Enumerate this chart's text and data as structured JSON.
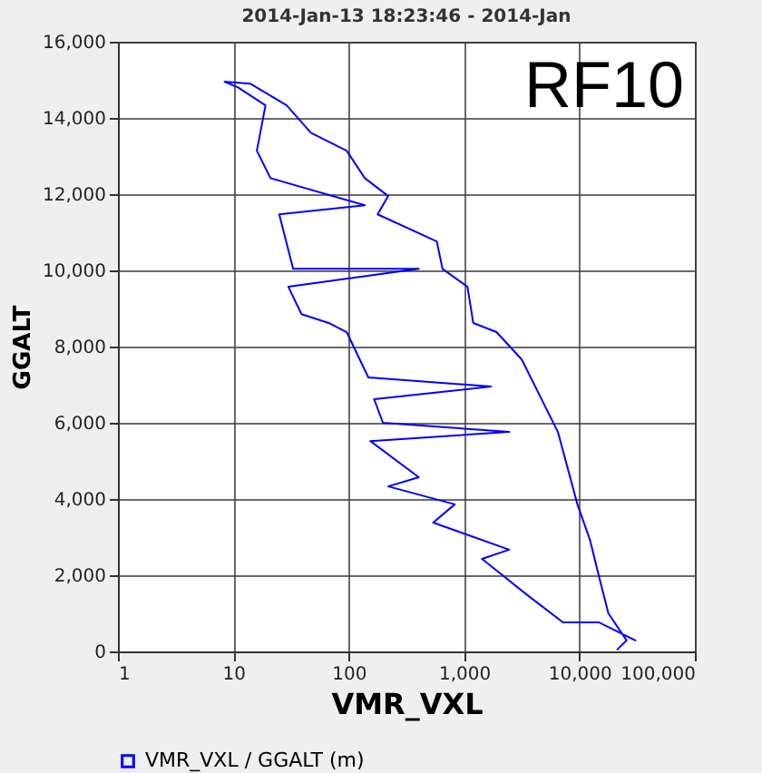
{
  "chart_data": {
    "type": "line",
    "title": "2014-Jan-13 18:23:46 - 2014-Jan",
    "xlabel": "VMR_VXL",
    "ylabel": "GGALT",
    "annotations": [
      "RF10"
    ],
    "log": "x",
    "grid": true,
    "legend": "bottom",
    "marker": "none",
    "line_style": "solid",
    "xlim": [
      1,
      100000
    ],
    "xticks": [
      1,
      10,
      100,
      {
        "value": 1000,
        "label": "1,000"
      },
      {
        "value": 10000,
        "label": "10,000"
      },
      {
        "value": 100000,
        "label": "100,000"
      }
    ],
    "ylim": [
      0,
      16000
    ],
    "yticks": [
      0,
      {
        "value": 2000,
        "label": "2,000"
      },
      {
        "value": 4000,
        "label": "4,000"
      },
      {
        "value": 6000,
        "label": "6,000"
      },
      {
        "value": 8000,
        "label": "8,000"
      },
      {
        "value": 10000,
        "label": "10,000"
      },
      {
        "value": 12000,
        "label": "12,000"
      },
      {
        "value": 14000,
        "label": "14,000"
      },
      {
        "value": 16000,
        "label": "16,000"
      }
    ],
    "series": [
      {
        "name": "VMR_VXL / GGALT (m)",
        "color": "#0000ff",
        "x": [
          30500,
          14800,
          7200,
          3530,
          1430,
          2460,
          540,
          830,
          220,
          405,
          154,
          2460,
          198,
          166,
          1710,
          148,
          96,
          67,
          39,
          30,
          405,
          33,
          25,
          138,
          21,
          16,
          19,
          11,
          8.4,
          14,
          29,
          47,
          96,
          138,
          220,
          178,
          580,
          650,
          1070,
          1200,
          1910,
          3160,
          6500,
          9600,
          12400,
          14800,
          17800,
          25600,
          21300
        ],
        "values": [
          290,
          760,
          760,
          1480,
          2430,
          2670,
          3380,
          3860,
          4330,
          4570,
          5520,
          5760,
          6000,
          6620,
          6950,
          7190,
          8380,
          8620,
          8850,
          9570,
          10040,
          10040,
          11470,
          11710,
          12420,
          13140,
          14330,
          14800,
          14950,
          14900,
          14330,
          13610,
          13140,
          12420,
          11950,
          11470,
          10760,
          10040,
          9570,
          8620,
          8380,
          7660,
          5760,
          3860,
          2900,
          1950,
          1000,
          290,
          50
        ]
      }
    ]
  }
}
